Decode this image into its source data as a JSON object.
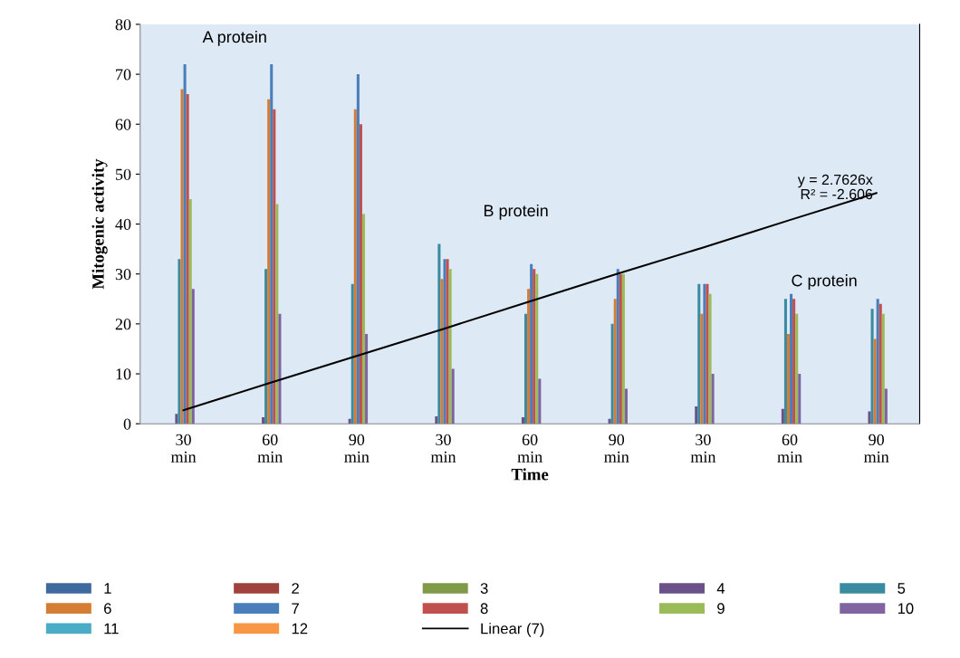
{
  "chart_data": {
    "type": "bar",
    "xlabel": "Time",
    "ylabel": "Mitogenic activity",
    "categories": [
      "30\nmin",
      "60\nmin",
      "90\nmin",
      "30\nmin",
      "60\nmin",
      "90\nmin",
      "30\nmin",
      "60\nmin",
      "90\nmin"
    ],
    "series": [
      {
        "name": "1",
        "color": "#3f6aa0",
        "values": [
          0,
          0,
          0,
          0,
          0,
          0,
          0,
          0,
          0
        ]
      },
      {
        "name": "2",
        "color": "#a0413d",
        "values": [
          0,
          0,
          0,
          0,
          0,
          0,
          0,
          0,
          0
        ]
      },
      {
        "name": "3",
        "color": "#7f9a48",
        "values": [
          0,
          0,
          0,
          0,
          0,
          0,
          0,
          0,
          0
        ]
      },
      {
        "name": "4",
        "color": "#6a5288",
        "values": [
          2,
          1.3,
          1,
          1.5,
          1.3,
          1,
          3.5,
          3,
          2.5
        ]
      },
      {
        "name": "5",
        "color": "#3a8ba0",
        "values": [
          33,
          31,
          28,
          36,
          22,
          20,
          28,
          25,
          23
        ]
      },
      {
        "name": "6",
        "color": "#d67d35",
        "values": [
          67,
          65,
          63,
          29,
          27,
          25,
          22,
          18,
          17
        ]
      },
      {
        "name": "7",
        "color": "#4a7ebb",
        "values": [
          72,
          72,
          70,
          33,
          32,
          31,
          28,
          26,
          25
        ]
      },
      {
        "name": "8",
        "color": "#c0504d",
        "values": [
          66,
          63,
          60,
          33,
          31,
          30,
          28,
          25,
          24
        ]
      },
      {
        "name": "9",
        "color": "#9bbb59",
        "values": [
          45,
          44,
          42,
          31,
          30,
          30,
          26,
          22,
          22
        ]
      },
      {
        "name": "10",
        "color": "#8064a2",
        "values": [
          27,
          22,
          18,
          11,
          9,
          7,
          10,
          10,
          7
        ]
      },
      {
        "name": "11",
        "color": "#4bacc6",
        "values": [
          0,
          0,
          0,
          0,
          0,
          0,
          0,
          0,
          0
        ]
      },
      {
        "name": "12",
        "color": "#f79646",
        "values": [
          0,
          0,
          0,
          0,
          0,
          0,
          0,
          0,
          0
        ]
      },
      {
        "name": "Linear (7)",
        "type": "line",
        "color": "#000000",
        "values": [
          2.7,
          8.2,
          13.6,
          19,
          24.5,
          30,
          35.3,
          40.8,
          46.2
        ]
      }
    ],
    "ylim": [
      0,
      80
    ],
    "yticks": [
      0,
      10,
      20,
      30,
      40,
      50,
      60,
      70,
      80
    ],
    "annotations": [
      "A protein",
      "B protein",
      "C protein",
      "y = 2.7626x\nR² = -2.606"
    ],
    "legend": "bottom",
    "grid": false
  }
}
